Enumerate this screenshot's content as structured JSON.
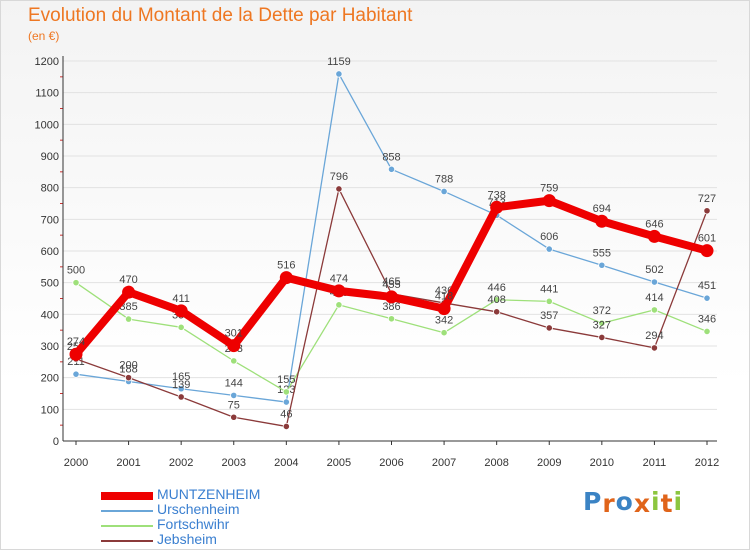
{
  "header": {
    "title": "Evolution du Montant de la Dette par Habitant",
    "subtitle": "(en €)"
  },
  "brand": {
    "text": "Proxiti",
    "letters": [
      "P",
      "r",
      "o",
      "x",
      "i",
      "t",
      "i"
    ],
    "colors": [
      "#3b83c4",
      "#e0641a",
      "#3b83c4",
      "#e0641a",
      "#8cc63f",
      "#e0641a",
      "#8cc63f"
    ]
  },
  "chart_data": {
    "type": "line",
    "title": "Evolution du Montant de la Dette par Habitant",
    "subtitle": "(en €)",
    "x": [
      "2000",
      "2001",
      "2002",
      "2003",
      "2004",
      "2005",
      "2006",
      "2007",
      "2008",
      "2009",
      "2010",
      "2011",
      "2012"
    ],
    "ylim": [
      0,
      1200
    ],
    "yticks": [
      0,
      100,
      200,
      300,
      400,
      500,
      600,
      700,
      800,
      900,
      1000,
      1100,
      1200
    ],
    "grid": true,
    "legend_position": "bottom-left",
    "series": [
      {
        "name": "MUNTZENHEIM",
        "color": "#ee0000",
        "emphasis": true,
        "values": [
          274,
          470,
          411,
          301,
          516,
          474,
          455,
          418,
          738,
          759,
          694,
          646,
          601
        ]
      },
      {
        "name": "Urschenheim",
        "color": "#6aa6d8",
        "values": [
          211,
          188,
          165,
          144,
          123,
          1159,
          858,
          788,
          713,
          606,
          555,
          502,
          451
        ]
      },
      {
        "name": "Fortschwihr",
        "color": "#9ee07a",
        "values": [
          500,
          385,
          359,
          253,
          155,
          430,
          386,
          342,
          446,
          441,
          372,
          414,
          346
        ]
      },
      {
        "name": "Jebsheim",
        "color": "#8b3a3a",
        "values": [
          259,
          200,
          139,
          75,
          46,
          796,
          465,
          436,
          408,
          357,
          327,
          294,
          727
        ]
      }
    ]
  }
}
